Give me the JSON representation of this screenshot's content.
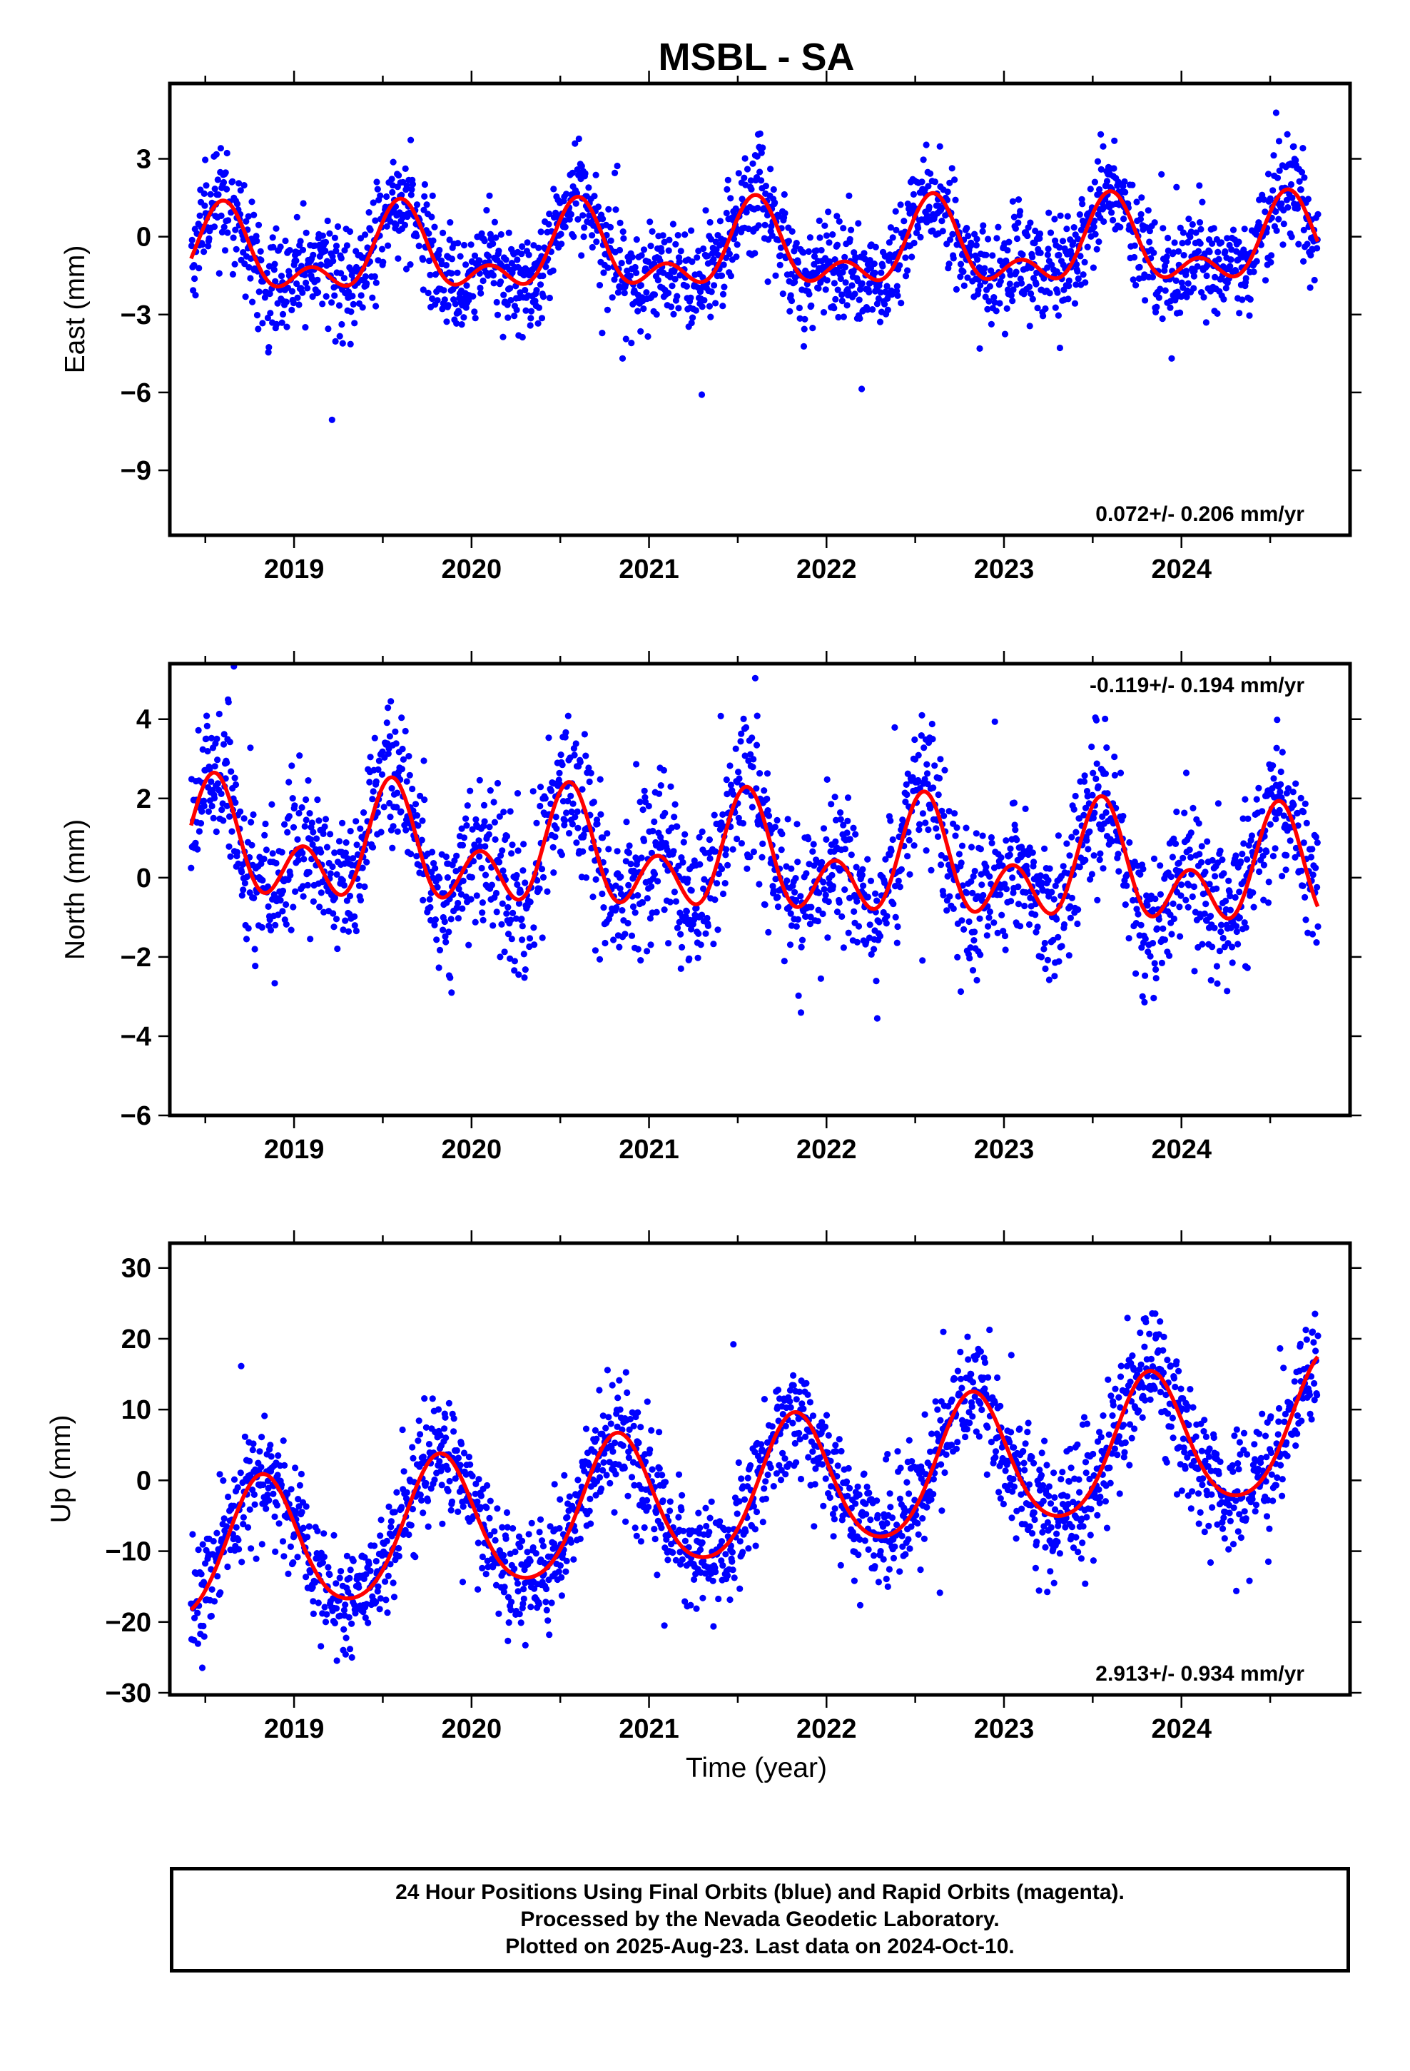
{
  "title": "MSBL - SA",
  "x_tick_labels": [
    "2019",
    "2020",
    "2021",
    "2022",
    "2023",
    "2024"
  ],
  "x_axis_label": "Time (year)",
  "colors": {
    "final_orbits": "#0000ff",
    "rapid_orbits": "#ff00ff",
    "model_fit": "#ff0000",
    "frame": "#000000"
  },
  "footer": {
    "line1": "24 Hour Positions Using Final Orbits (blue) and Rapid Orbits (magenta).",
    "line2": "Processed by the Nevada Geodetic Laboratory.",
    "line3": "Plotted on 2025-Aug-23. Last data on 2024-Oct-10."
  },
  "chart_data": [
    {
      "type": "scatter",
      "component": "East",
      "ylabel": "East (mm)",
      "rate_label": "0.072+/- 0.206 mm/yr",
      "rate_position": "bottom-right",
      "xlim": [
        2018.3,
        2024.95
      ],
      "ylim": [
        -11.5,
        5.9
      ],
      "yticks": [
        -9,
        -6,
        -3,
        0,
        3
      ],
      "ytick_labels": [
        "−9",
        "−6",
        "−3",
        "0",
        "3"
      ],
      "fit": {
        "offset": -0.6,
        "trend": 0.072,
        "ref_year": 2021.5,
        "annual_amp": 1.3,
        "annual_peak": 2018.6,
        "semiannual_amp": 0.9,
        "semiannual_peak": 2018.6
      },
      "scatter_sd": 1.0,
      "x": [
        2018.42,
        2018.6,
        2018.8,
        2018.98,
        2019.2,
        2019.4,
        2019.6,
        2019.8,
        2019.98,
        2020.2,
        2020.4,
        2020.6,
        2020.8,
        2020.98,
        2021.2,
        2021.4,
        2021.6,
        2021.8,
        2021.98,
        2022.2,
        2022.4,
        2022.6,
        2022.8,
        2022.98,
        2023.2,
        2023.4,
        2023.6,
        2023.8,
        2023.98,
        2024.2,
        2024.4,
        2024.6,
        2024.77
      ],
      "y": [
        0.5,
        1.2,
        -0.7,
        -2.4,
        -0.6,
        0.5,
        1.3,
        -0.6,
        -2.4,
        -0.3,
        0.6,
        1.4,
        -0.5,
        -2.3,
        -0.1,
        0.7,
        1.4,
        -0.4,
        -2.2,
        0.1,
        0.9,
        1.5,
        -0.4,
        -2.1,
        0.0,
        0.9,
        1.5,
        -0.3,
        -2.1,
        0.2,
        0.8,
        1.6,
        -0.3
      ]
    },
    {
      "type": "scatter",
      "component": "North",
      "ylabel": "North (mm)",
      "rate_label": "-0.119+/- 0.194 mm/yr",
      "rate_position": "top-right",
      "xlim": [
        2018.3,
        2024.95
      ],
      "ylim": [
        -6.0,
        5.4
      ],
      "yticks": [
        -6,
        -4,
        -2,
        0,
        2,
        4
      ],
      "ytick_labels": [
        "−6",
        "−4",
        "−2",
        "0",
        "2",
        "4"
      ],
      "fit": {
        "offset": 0.4,
        "trend": -0.119,
        "ref_year": 2021.5,
        "annual_amp": 0.9,
        "annual_peak": 2018.55,
        "semiannual_amp": 1.0,
        "semiannual_peak": 2018.55
      },
      "scatter_sd": 0.9,
      "x": [
        2018.42,
        2018.55,
        2018.8,
        2019.05,
        2019.3,
        2019.55,
        2019.8,
        2020.05,
        2020.3,
        2020.55,
        2020.8,
        2021.05,
        2021.3,
        2021.55,
        2021.8,
        2022.05,
        2022.3,
        2022.55,
        2022.8,
        2023.05,
        2023.3,
        2023.55,
        2023.8,
        2024.05,
        2024.3,
        2024.55,
        2024.77
      ],
      "y": [
        -0.3,
        2.2,
        -0.6,
        0.8,
        -1.0,
        2.1,
        -0.8,
        0.7,
        -1.2,
        2.0,
        -0.9,
        0.6,
        -1.4,
        1.8,
        -1.0,
        0.5,
        -1.5,
        1.7,
        -1.1,
        0.4,
        -1.6,
        1.6,
        -1.3,
        0.3,
        -1.7,
        1.5,
        -0.8
      ]
    },
    {
      "type": "scatter",
      "component": "Up",
      "ylabel": "Up (mm)",
      "rate_label": "2.913+/- 0.934 mm/yr",
      "rate_position": "bottom-right",
      "xlim": [
        2018.3,
        2024.95
      ],
      "ylim": [
        -30.3,
        33.5
      ],
      "yticks": [
        -30,
        -20,
        -10,
        0,
        10,
        20,
        30
      ],
      "ytick_labels": [
        "−30",
        "−20",
        "−10",
        "0",
        "10",
        "20",
        "30"
      ],
      "fit": {
        "offset": -2.0,
        "trend": 2.913,
        "ref_year": 2021.5,
        "annual_amp": 9.5,
        "annual_peak": 2018.82,
        "semiannual_amp": 1.2,
        "semiannual_peak": 2018.82
      },
      "scatter_sd": 4.0,
      "x": [
        2018.42,
        2018.82,
        2019.05,
        2019.37,
        2019.82,
        2020.05,
        2020.37,
        2020.82,
        2021.05,
        2021.37,
        2021.82,
        2022.05,
        2022.37,
        2022.82,
        2023.05,
        2023.4,
        2023.82,
        2024.05,
        2024.37,
        2024.77
      ],
      "y": [
        -17.5,
        -1.0,
        -5.0,
        -15.0,
        2.0,
        -2.0,
        -12.0,
        5.0,
        1.0,
        -9.0,
        8.0,
        4.0,
        -6.0,
        11.0,
        7.0,
        -3.0,
        14.0,
        10.0,
        0.0,
        16.0
      ]
    }
  ]
}
